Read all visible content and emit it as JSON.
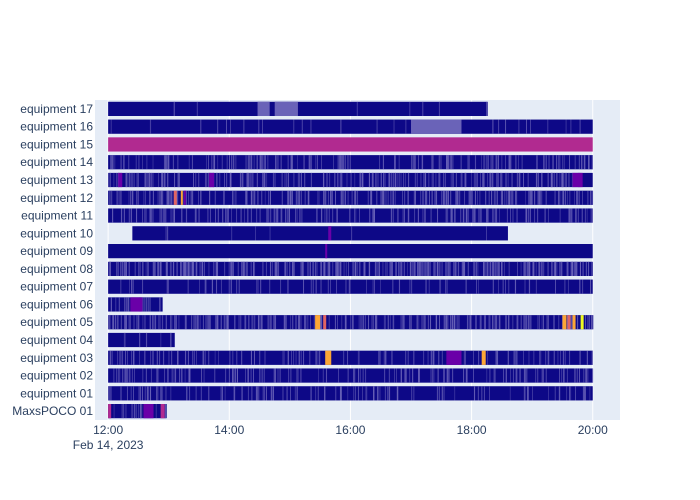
{
  "chart_data": {
    "type": "timeline",
    "x_axis": {
      "type": "date",
      "range": [
        "2023-02-14 11:47",
        "2023-02-14 20:27"
      ],
      "ticks": [
        "12:00",
        "14:00",
        "16:00",
        "18:00",
        "20:00"
      ],
      "date_label": "Feb 14, 2023",
      "grid": true
    },
    "colors": {
      "plot_bg": "#e5ecf6",
      "grid": "#ffffff",
      "base": "#0d0887",
      "light": "#6a63b8",
      "purple": "#6a00a8",
      "magenta": "#b12a90",
      "orange": "#e16462",
      "yellow": "#fca636",
      "bright_yellow": "#f0f921"
    },
    "rows": [
      {
        "label": "equipment 17",
        "start": "12:00",
        "end": "18:16",
        "dense": 0.02,
        "segments": [
          {
            "from": "14:28",
            "to": "14:40",
            "color": "light"
          },
          {
            "from": "14:45",
            "to": "15:08",
            "color": "light"
          }
        ]
      },
      {
        "label": "equipment 16",
        "start": "12:00",
        "end": "20:00",
        "dense": 0.06,
        "segments": [
          {
            "from": "17:00",
            "to": "17:50",
            "color": "light"
          }
        ]
      },
      {
        "label": "equipment 15",
        "start": "12:00",
        "end": "20:00",
        "base": "magenta",
        "dense": 0.0,
        "segments": []
      },
      {
        "label": "equipment 14",
        "start": "12:00",
        "end": "20:00",
        "dense": 0.35,
        "segments": []
      },
      {
        "label": "equipment 13",
        "start": "12:00",
        "end": "20:00",
        "dense": 0.45,
        "segments": [
          {
            "from": "12:10",
            "to": "12:14",
            "color": "purple"
          },
          {
            "from": "13:40",
            "to": "13:45",
            "color": "purple"
          },
          {
            "from": "19:40",
            "to": "19:50",
            "color": "purple"
          }
        ]
      },
      {
        "label": "equipment 12",
        "start": "12:00",
        "end": "20:00",
        "dense": 0.5,
        "segments": [
          {
            "from": "13:05",
            "to": "13:08",
            "color": "orange"
          },
          {
            "from": "13:12",
            "to": "13:14",
            "color": "yellow"
          },
          {
            "from": "13:15",
            "to": "13:17",
            "color": "purple"
          }
        ]
      },
      {
        "label": "equipment 11",
        "start": "12:00",
        "end": "20:00",
        "dense": 0.35,
        "segments": []
      },
      {
        "label": "equipment 10",
        "start": "12:24",
        "end": "18:36",
        "dense": 0.02,
        "segments": [
          {
            "from": "15:38",
            "to": "15:41",
            "color": "purple"
          }
        ]
      },
      {
        "label": "equipment 09",
        "start": "12:00",
        "end": "20:00",
        "dense": 0.0,
        "segments": [
          {
            "from": "15:35",
            "to": "15:37",
            "color": "purple"
          }
        ]
      },
      {
        "label": "equipment 08",
        "start": "12:00",
        "end": "20:00",
        "dense": 0.7,
        "segments": []
      },
      {
        "label": "equipment 07",
        "start": "12:00",
        "end": "20:00",
        "dense": 0.15,
        "segments": []
      },
      {
        "label": "equipment 06",
        "start": "12:00",
        "end": "12:54",
        "dense": 0.35,
        "segments": [
          {
            "from": "12:22",
            "to": "12:34",
            "color": "purple"
          }
        ]
      },
      {
        "label": "equipment 05",
        "start": "12:00",
        "end": "20:00",
        "dense": 0.55,
        "segments": [
          {
            "from": "15:25",
            "to": "15:30",
            "color": "yellow"
          },
          {
            "from": "15:33",
            "to": "15:36",
            "color": "orange"
          },
          {
            "from": "19:30",
            "to": "19:34",
            "color": "yellow"
          },
          {
            "from": "19:35",
            "to": "19:38",
            "color": "orange"
          },
          {
            "from": "19:40",
            "to": "19:43",
            "color": "yellow"
          },
          {
            "from": "19:48",
            "to": "19:51",
            "color": "bright_yellow"
          }
        ]
      },
      {
        "label": "equipment 04",
        "start": "12:00",
        "end": "13:06",
        "dense": 0.1,
        "segments": []
      },
      {
        "label": "equipment 03",
        "start": "12:00",
        "end": "20:00",
        "dense": 0.25,
        "segments": [
          {
            "from": "15:35",
            "to": "15:41",
            "color": "yellow"
          },
          {
            "from": "18:10",
            "to": "18:14",
            "color": "yellow"
          },
          {
            "from": "17:35",
            "to": "17:50",
            "color": "purple"
          }
        ]
      },
      {
        "label": "equipment 02",
        "start": "12:00",
        "end": "20:00",
        "dense": 0.3,
        "segments": []
      },
      {
        "label": "equipment 01",
        "start": "12:00",
        "end": "20:00",
        "dense": 0.25,
        "segments": []
      },
      {
        "label": "MaxsPOCO 01",
        "start": "12:00",
        "end": "12:58",
        "dense": 0.4,
        "segments": [
          {
            "from": "12:00",
            "to": "12:03",
            "color": "magenta"
          },
          {
            "from": "12:35",
            "to": "12:45",
            "color": "purple"
          },
          {
            "from": "12:52",
            "to": "12:56",
            "color": "magenta"
          }
        ]
      }
    ]
  }
}
